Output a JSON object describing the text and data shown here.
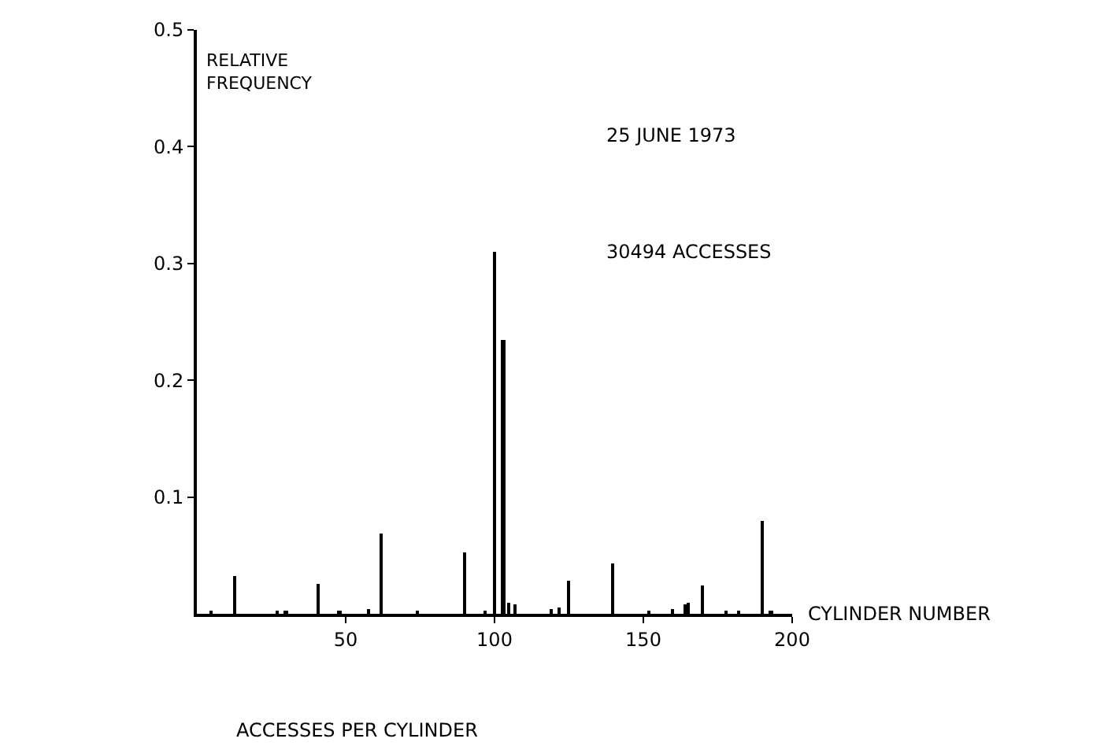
{
  "chart_data": {
    "type": "bar",
    "title": "ACCESSES PER CYLINDER",
    "xlabel": "CYLINDER NUMBER",
    "ylabel": "RELATIVE FREQUENCY",
    "annotations": [
      "25 JUNE 1973",
      "30494 ACCESSES"
    ],
    "x": [
      5,
      13,
      27,
      30,
      41,
      48,
      58,
      62,
      74,
      90,
      97,
      100,
      103,
      105,
      107,
      119,
      122,
      125,
      140,
      152,
      160,
      164,
      165,
      170,
      178,
      182,
      190,
      193
    ],
    "values": [
      0.002,
      0.032,
      0.003,
      0.003,
      0.025,
      0.003,
      0.004,
      0.069,
      0.003,
      0.053,
      0.003,
      0.31,
      0.235,
      0.009,
      0.008,
      0.004,
      0.005,
      0.028,
      0.043,
      0.003,
      0.004,
      0.008,
      0.01,
      0.024,
      0.003,
      0.003,
      0.08,
      0.003
    ],
    "color": "#000000",
    "xlim": [
      0,
      200
    ],
    "xticks": [
      50,
      100,
      150,
      200
    ],
    "ylim": [
      0,
      0.5
    ],
    "yticks": [
      0.1,
      0.2,
      0.3,
      0.4,
      0.5
    ]
  }
}
